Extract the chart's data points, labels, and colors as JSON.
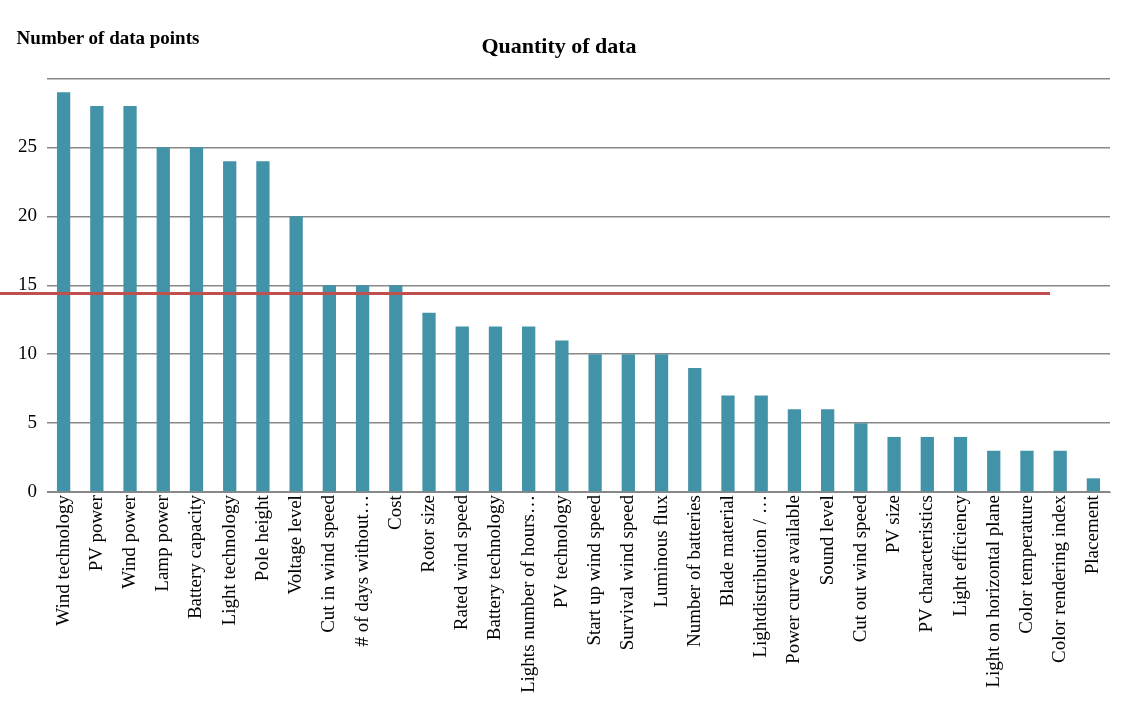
{
  "chart_data": {
    "type": "bar",
    "title": "Quantity of data",
    "ylabel": "Number of data points",
    "categories": [
      "Wind technology",
      "PV power",
      "Wind power",
      "Lamp power",
      "Battery capacity",
      "Light technology",
      "Pole height",
      "Voltage level",
      "Cut in wind speed",
      "# of days without…",
      "Cost",
      "Rotor size",
      "Rated wind speed",
      "Battery technology",
      "Lights number of hours…",
      "PV technology",
      "Start up wind speed",
      "Survival wind speed",
      "Luminous flux",
      "Number of batteries",
      "Blade material",
      "Lightdistribution / …",
      "Power curve available",
      "Sound level",
      "Cut out wind speed",
      "PV size",
      "PV characteristics",
      "Light efficiency",
      "Light on horizontal plane",
      "Color temperature",
      "Color rendering index",
      "Placement"
    ],
    "values": [
      29,
      28,
      28,
      25,
      25,
      24,
      24,
      20,
      15,
      15,
      15,
      13,
      12,
      12,
      12,
      11,
      10,
      10,
      10,
      9,
      7,
      7,
      6,
      6,
      5,
      4,
      4,
      4,
      3,
      3,
      3,
      1
    ],
    "color": "#4393a8",
    "ylim": [
      0,
      30
    ],
    "yticks": [
      0,
      5,
      10,
      15,
      20,
      25,
      {
        "value": 30,
        "label": null
      }
    ],
    "grid": "y",
    "legend": false,
    "ref_lines": [
      {
        "axis": "y",
        "value": 14.4,
        "color": "#c0504d"
      }
    ]
  }
}
